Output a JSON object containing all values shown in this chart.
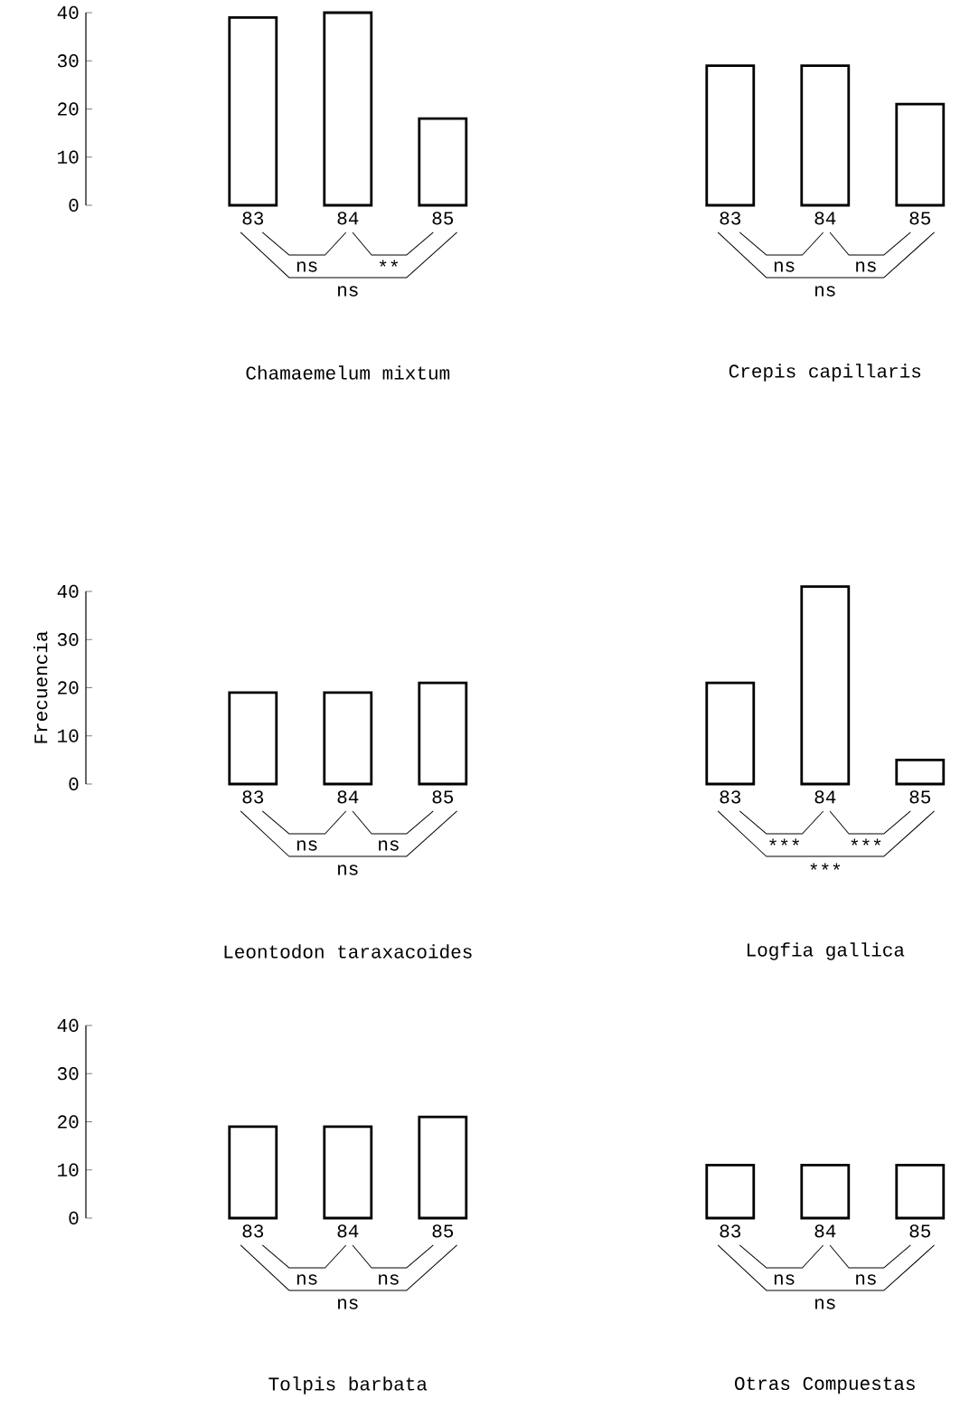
{
  "chart_data": [
    {
      "type": "bar",
      "title": "Chamaemelum mixtum",
      "categories": [
        "83",
        "84",
        "85"
      ],
      "values": [
        39,
        40,
        18
      ],
      "color": "#000000",
      "ylim": [
        0,
        40
      ],
      "yticks": [
        0,
        10,
        20,
        30,
        40
      ],
      "annotations": [
        "ns",
        "**",
        "ns"
      ]
    },
    {
      "type": "bar",
      "title": "Crepis capillaris",
      "categories": [
        "83",
        "84",
        "85"
      ],
      "values": [
        29,
        29,
        21
      ],
      "color": "#000000",
      "ylim": [
        0,
        40
      ],
      "yticks": [
        0,
        10,
        20,
        30,
        40
      ],
      "tick_labels": "x",
      "annotations": [
        "ns",
        "ns",
        "ns"
      ]
    },
    {
      "type": "bar",
      "title": "Leontodon taraxacoides",
      "ylabel": "Frecuencia",
      "categories": [
        "83",
        "84",
        "85"
      ],
      "values": [
        19,
        19,
        21
      ],
      "color": "#000000",
      "ylim": [
        0,
        40
      ],
      "yticks": [
        0,
        10,
        20,
        30,
        40
      ],
      "annotations": [
        "ns",
        "ns",
        "ns"
      ]
    },
    {
      "type": "bar",
      "title": "Logfia gallica",
      "categories": [
        "83",
        "84",
        "85"
      ],
      "values": [
        21,
        41,
        5
      ],
      "color": "#000000",
      "ylim": [
        0,
        41
      ],
      "yticks": [
        0,
        10,
        20,
        30,
        40
      ],
      "tick_labels": "x",
      "annotations": [
        "***",
        "***",
        "***"
      ]
    },
    {
      "type": "bar",
      "title": "Tolpis barbata",
      "categories": [
        "83",
        "84",
        "85"
      ],
      "values": [
        19,
        19,
        21
      ],
      "color": "#000000",
      "ylim": [
        0,
        40
      ],
      "yticks": [
        0,
        10,
        20,
        30,
        40
      ],
      "annotations": [
        "ns",
        "ns",
        "ns"
      ]
    },
    {
      "type": "bar",
      "title": "Otras Compuestas",
      "categories": [
        "83",
        "84",
        "85"
      ],
      "values": [
        11,
        11,
        11
      ],
      "color": "#000000",
      "ylim": [
        0,
        40
      ],
      "yticks": [
        0,
        10,
        20,
        30,
        40
      ],
      "tick_labels": "x",
      "annotations": [
        "ns",
        "ns",
        "ns"
      ]
    }
  ]
}
